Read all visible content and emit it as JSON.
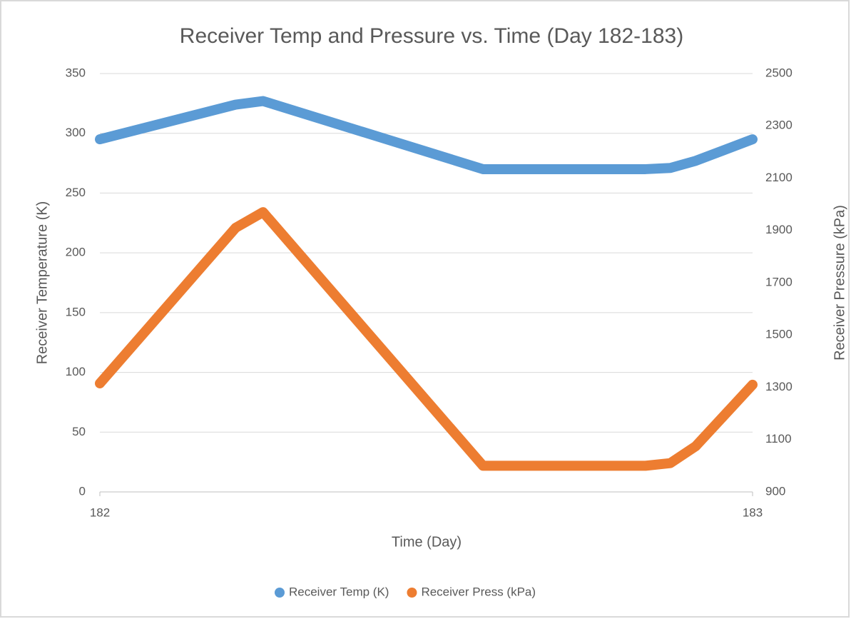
{
  "chart_data": {
    "type": "line",
    "title": "Receiver Temp and Pressure vs. Time (Day 182-183)",
    "x_label": "Time (Day)",
    "y_label": "Receiver Temperature (K)",
    "y2_label": "Receiver Pressure (kPa)",
    "x": [
      182,
      182.208,
      182.25,
      182.587,
      182.836,
      182.874,
      182.913,
      183
    ],
    "series": [
      {
        "name": "Receiver Temp (K)",
        "color": "#5b9bd5",
        "values": [
          295,
          324,
          327,
          270,
          270,
          271,
          277,
          295
        ]
      },
      {
        "name": "Receiver Press (kPa)",
        "color": "#ed7d31",
        "axis": "y2",
        "values": [
          1315,
          1910,
          1970,
          1000,
          1000,
          1010,
          1075,
          1310
        ]
      }
    ],
    "xlim": [
      182,
      183
    ],
    "xticks": [
      182,
      183
    ],
    "ylim": [
      0,
      350
    ],
    "yticks": [
      0,
      50,
      100,
      150,
      200,
      250,
      300,
      350
    ],
    "y2lim": [
      900,
      2500
    ],
    "y2ticks": [
      900,
      1100,
      1300,
      1500,
      1700,
      1900,
      2100,
      2300,
      2500
    ],
    "grid": true,
    "legend": "bottom"
  }
}
